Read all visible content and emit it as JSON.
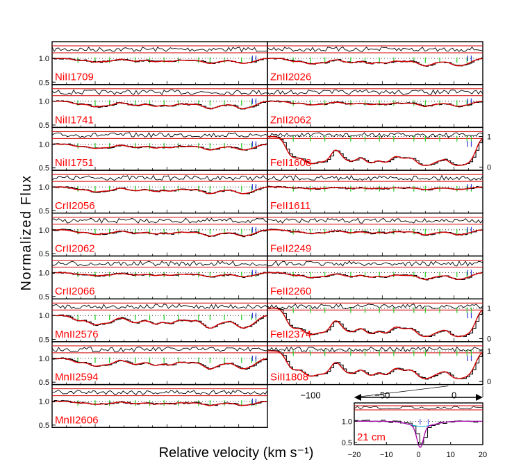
{
  "figure": {
    "ylabel": "Normalized Flux",
    "xlabel": "Relative velocity (km s⁻¹)"
  },
  "chart_data": {
    "type": "line",
    "description_axes": {
      "main_x_ticks": [
        "−100",
        "−50",
        "0"
      ],
      "left_y_ticks": [
        "1.0",
        "0.5"
      ],
      "right_y_ticks": [
        "1",
        "0"
      ],
      "inset_x_ticks": [
        "−20",
        "−10",
        "0",
        "10",
        "20"
      ],
      "inset_y_ticks": [
        "1.0",
        "0.5"
      ]
    },
    "panels_left": [
      {
        "label": "NiII1709",
        "ylim": [
          0.45,
          1.35
        ],
        "depth": 0.12
      },
      {
        "label": "NiII1741",
        "ylim": [
          0.45,
          1.35
        ],
        "depth": 0.18
      },
      {
        "label": "NiII1751",
        "ylim": [
          0.45,
          1.35
        ],
        "depth": 0.14
      },
      {
        "label": "CrII2056",
        "ylim": [
          0.45,
          1.35
        ],
        "depth": 0.16
      },
      {
        "label": "CrII2062",
        "ylim": [
          0.45,
          1.35
        ],
        "depth": 0.15
      },
      {
        "label": "CrII2066",
        "ylim": [
          0.45,
          1.35
        ],
        "depth": 0.1
      },
      {
        "label": "MnII2576",
        "ylim": [
          0.45,
          1.35
        ],
        "depth": 0.3
      },
      {
        "label": "MnII2594",
        "ylim": [
          0.45,
          1.35
        ],
        "depth": 0.25
      },
      {
        "label": "MnII2606",
        "ylim": [
          0.45,
          1.35
        ],
        "depth": 0.1
      }
    ],
    "panels_right": [
      {
        "label": "ZnII2026",
        "ylim": [
          0.45,
          1.35
        ],
        "depth": 0.18,
        "scale": "left"
      },
      {
        "label": "ZnII2062",
        "ylim": [
          0.45,
          1.35
        ],
        "depth": 0.12,
        "scale": "left"
      },
      {
        "label": "FeII1608",
        "ylim": [
          -0.1,
          1.3
        ],
        "depth": 0.92,
        "scale": "right"
      },
      {
        "label": "FeII1611",
        "ylim": [
          0.45,
          1.35
        ],
        "depth": 0.06,
        "scale": "left"
      },
      {
        "label": "FeII2249",
        "ylim": [
          0.45,
          1.35
        ],
        "depth": 0.12,
        "scale": "left"
      },
      {
        "label": "FeII2260",
        "ylim": [
          0.45,
          1.35
        ],
        "depth": 0.16,
        "scale": "left"
      },
      {
        "label": "FeII2374",
        "ylim": [
          -0.1,
          1.3
        ],
        "depth": 0.85,
        "scale": "right"
      },
      {
        "label": "SiII1808",
        "ylim": [
          -0.1,
          1.3
        ],
        "depth": 0.75,
        "scale": "right"
      }
    ],
    "inset": {
      "label": "21 cm",
      "xlim": [
        -20,
        20
      ],
      "ylim": [
        0.45,
        1.3
      ]
    }
  },
  "colors": {
    "data": "#000000",
    "fit": "#d40000",
    "label": "#ff0000",
    "components": "#22cc22",
    "markers": "#3333dd",
    "inset_fit": "#aa00aa",
    "inset_component": "#00aacc"
  }
}
